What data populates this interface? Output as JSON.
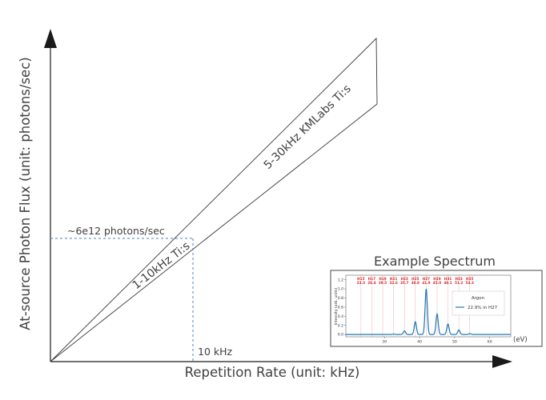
{
  "axes": {
    "x_label": "Repetition Rate (unit: kHz)",
    "y_label": "At-source Photon Flux (unit: photons/sec)"
  },
  "annotations": {
    "flux_marker": "~6e12 photons/sec",
    "rate_marker": "10 kHz",
    "band_upper_label": "5-30kHz KMLabs Ti:s",
    "band_lower_label": "1-10kHz Ti:s"
  },
  "inset": {
    "title": "Example Spectrum",
    "harmonic_labels": [
      "H15",
      "H17",
      "H19",
      "H21",
      "H23",
      "H25",
      "H27",
      "H29",
      "H31",
      "H33",
      "H35"
    ],
    "harmonic_energies": [
      "23.3",
      "26.4",
      "29.5",
      "32.6",
      "35.7",
      "38.8",
      "41.9",
      "45.0",
      "48.1",
      "51.2",
      "54.3"
    ],
    "y_axis_label": "Intensity (arb. units)",
    "y_ticks": [
      "0.0",
      "0.2",
      "0.4",
      "0.6",
      "0.8",
      "1.0",
      "1.2"
    ],
    "x_ticks": [
      "30",
      "40",
      "50",
      "60"
    ],
    "x_unit": "(eV)",
    "legend_title": "Argon",
    "legend_entry": "22.9% in H27",
    "line_color": "#1f77b4",
    "marker_color": "#d62728"
  },
  "colors": {
    "axis": "#1a1a1a",
    "dashed": "#4a7fc1",
    "text": "#404040"
  },
  "chart_data": {
    "type": "line",
    "title": "Example Spectrum",
    "xlabel": "(eV)",
    "ylabel": "Intensity (arb. units)",
    "xlim": [
      19,
      66
    ],
    "ylim": [
      -0.05,
      1.3
    ],
    "series": [
      {
        "name": "22.9% in H27",
        "x": [
          23.3,
          26.4,
          29.5,
          32.6,
          35.7,
          38.8,
          41.9,
          45.0,
          48.1,
          51.2,
          54.3
        ],
        "values": [
          0.0,
          0.0,
          0.0,
          0.01,
          0.08,
          0.28,
          1.0,
          0.45,
          0.23,
          0.1,
          0.02
        ]
      }
    ]
  }
}
